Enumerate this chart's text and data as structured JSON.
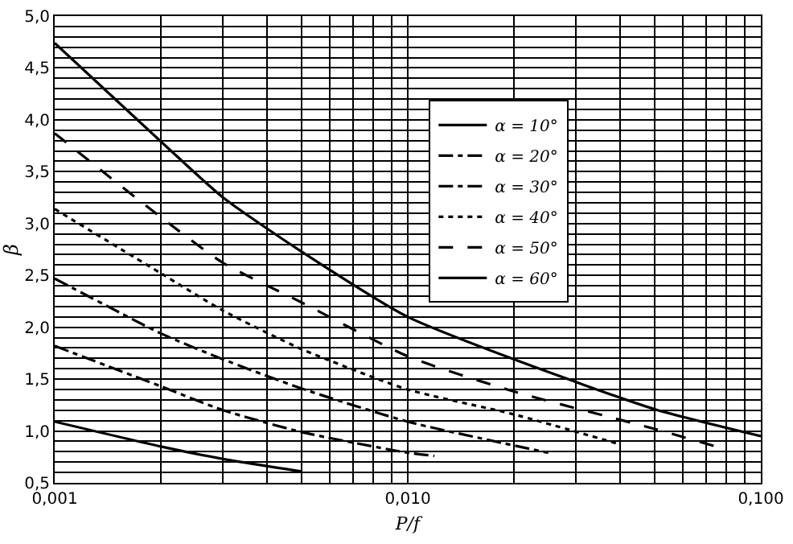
{
  "chart_data": {
    "type": "line",
    "xlabel": "P/f",
    "ylabel": "β",
    "log": "x",
    "grid": true,
    "legend": "top right",
    "marker": "none",
    "xlim": [
      0.001,
      0.1
    ],
    "ylim": [
      0.5,
      5.0
    ],
    "xticks": [
      {
        "value": 0.001,
        "label": "0,001"
      },
      {
        "value": 0.002,
        "label": null
      },
      {
        "value": 0.003,
        "label": null
      },
      {
        "value": 0.004,
        "label": null
      },
      {
        "value": 0.005,
        "label": null
      },
      {
        "value": 0.006,
        "label": null
      },
      {
        "value": 0.007,
        "label": null
      },
      {
        "value": 0.008,
        "label": null
      },
      {
        "value": 0.009,
        "label": null
      },
      {
        "value": 0.01,
        "label": "0,010"
      },
      {
        "value": 0.02,
        "label": null
      },
      {
        "value": 0.03,
        "label": null
      },
      {
        "value": 0.04,
        "label": null
      },
      {
        "value": 0.05,
        "label": null
      },
      {
        "value": 0.06,
        "label": null
      },
      {
        "value": 0.07,
        "label": null
      },
      {
        "value": 0.08,
        "label": null
      },
      {
        "value": 0.09,
        "label": null
      },
      {
        "value": 0.1,
        "label": "0,100"
      }
    ],
    "yticks": [
      {
        "value": 0.5,
        "label": "0,5"
      },
      {
        "value": 0.6,
        "label": null
      },
      {
        "value": 0.7,
        "label": null
      },
      {
        "value": 0.8,
        "label": null
      },
      {
        "value": 0.9,
        "label": null
      },
      {
        "value": 1.0,
        "label": "1,0"
      },
      {
        "value": 1.1,
        "label": null
      },
      {
        "value": 1.2,
        "label": null
      },
      {
        "value": 1.3,
        "label": null
      },
      {
        "value": 1.4,
        "label": null
      },
      {
        "value": 1.5,
        "label": "1,5"
      },
      {
        "value": 1.6,
        "label": null
      },
      {
        "value": 1.7,
        "label": null
      },
      {
        "value": 1.8,
        "label": null
      },
      {
        "value": 1.9,
        "label": null
      },
      {
        "value": 2.0,
        "label": "2,0"
      },
      {
        "value": 2.1,
        "label": null
      },
      {
        "value": 2.2,
        "label": null
      },
      {
        "value": 2.3,
        "label": null
      },
      {
        "value": 2.4,
        "label": null
      },
      {
        "value": 2.5,
        "label": "2,5"
      },
      {
        "value": 2.6,
        "label": null
      },
      {
        "value": 2.7,
        "label": null
      },
      {
        "value": 2.8,
        "label": null
      },
      {
        "value": 2.9,
        "label": null
      },
      {
        "value": 3.0,
        "label": "3,0"
      },
      {
        "value": 3.1,
        "label": null
      },
      {
        "value": 3.2,
        "label": null
      },
      {
        "value": 3.3,
        "label": null
      },
      {
        "value": 3.4,
        "label": null
      },
      {
        "value": 3.5,
        "label": "3,5"
      },
      {
        "value": 3.6,
        "label": null
      },
      {
        "value": 3.7,
        "label": null
      },
      {
        "value": 3.8,
        "label": null
      },
      {
        "value": 3.9,
        "label": null
      },
      {
        "value": 4.0,
        "label": "4,0"
      },
      {
        "value": 4.1,
        "label": null
      },
      {
        "value": 4.2,
        "label": null
      },
      {
        "value": 4.3,
        "label": null
      },
      {
        "value": 4.4,
        "label": null
      },
      {
        "value": 4.5,
        "label": "4,5"
      },
      {
        "value": 4.6,
        "label": null
      },
      {
        "value": 4.7,
        "label": null
      },
      {
        "value": 4.8,
        "label": null
      },
      {
        "value": 4.9,
        "label": null
      },
      {
        "value": 5.0,
        "label": "5,0"
      }
    ],
    "series": [
      {
        "name": "α = 10°",
        "color": "#000000",
        "line_style": "solid",
        "x": [
          0.001,
          0.002,
          0.003,
          0.005
        ],
        "values": [
          1.09,
          0.85,
          0.73,
          0.61
        ]
      },
      {
        "name": "α = 20°",
        "color": "#000000",
        "line_style": "dashdot",
        "x": [
          0.001,
          0.002,
          0.003,
          0.005,
          0.01,
          0.0119
        ],
        "values": [
          1.82,
          1.43,
          1.2,
          0.99,
          0.79,
          0.76
        ]
      },
      {
        "name": "α = 30°",
        "color": "#000000",
        "line_style": "dashdot",
        "x": [
          0.001,
          0.002,
          0.003,
          0.005,
          0.01,
          0.025
        ],
        "values": [
          2.47,
          1.94,
          1.69,
          1.41,
          1.09,
          0.79
        ]
      },
      {
        "name": "α = 40°",
        "color": "#000000",
        "line_style": "dotted",
        "x": [
          0.001,
          0.002,
          0.003,
          0.005,
          0.01,
          0.02,
          0.04
        ],
        "values": [
          3.14,
          2.52,
          2.16,
          1.79,
          1.4,
          1.16,
          0.87
        ]
      },
      {
        "name": "α = 50°",
        "color": "#000000",
        "line_style": "dashed",
        "x": [
          0.001,
          0.002,
          0.003,
          0.005,
          0.01,
          0.02,
          0.05,
          0.08
        ],
        "values": [
          3.87,
          3.06,
          2.62,
          2.24,
          1.72,
          1.38,
          1.02,
          0.82
        ]
      },
      {
        "name": "α = 60°",
        "color": "#000000",
        "line_style": "solid",
        "x": [
          0.001,
          0.002,
          0.003,
          0.005,
          0.01,
          0.02,
          0.05,
          0.1
        ],
        "values": [
          4.74,
          3.79,
          3.25,
          2.73,
          2.1,
          1.69,
          1.21,
          0.95
        ]
      }
    ]
  }
}
